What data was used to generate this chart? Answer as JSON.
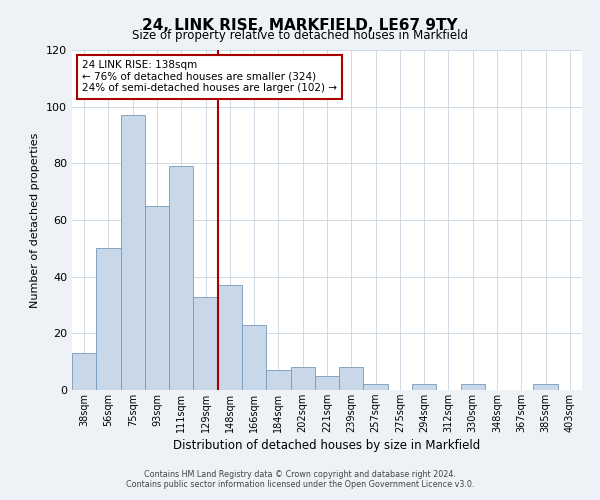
{
  "title": "24, LINK RISE, MARKFIELD, LE67 9TY",
  "subtitle": "Size of property relative to detached houses in Markfield",
  "xlabel": "Distribution of detached houses by size in Markfield",
  "ylabel": "Number of detached properties",
  "bar_labels": [
    "38sqm",
    "56sqm",
    "75sqm",
    "93sqm",
    "111sqm",
    "129sqm",
    "148sqm",
    "166sqm",
    "184sqm",
    "202sqm",
    "221sqm",
    "239sqm",
    "257sqm",
    "275sqm",
    "294sqm",
    "312sqm",
    "330sqm",
    "348sqm",
    "367sqm",
    "385sqm",
    "403sqm"
  ],
  "bar_values": [
    13,
    50,
    97,
    65,
    79,
    33,
    37,
    23,
    7,
    8,
    5,
    8,
    2,
    0,
    2,
    0,
    2,
    0,
    0,
    2,
    0
  ],
  "bar_color": "#c8d8e8",
  "bar_edge_color": "#7799bb",
  "ref_line_index": 6,
  "ref_line_color": "#aa0000",
  "ylim": [
    0,
    120
  ],
  "yticks": [
    0,
    20,
    40,
    60,
    80,
    100,
    120
  ],
  "annotation_line1": "24 LINK RISE: 138sqm",
  "annotation_line2": "← 76% of detached houses are smaller (324)",
  "annotation_line3": "24% of semi-detached houses are larger (102) →",
  "annotation_box_color": "#ffffff",
  "annotation_box_edge_color": "#aa0000",
  "footer_line1": "Contains HM Land Registry data © Crown copyright and database right 2024.",
  "footer_line2": "Contains public sector information licensed under the Open Government Licence v3.0.",
  "background_color": "#eef2f7",
  "plot_background_color": "#ffffff",
  "grid_color": "#c8d4e0"
}
